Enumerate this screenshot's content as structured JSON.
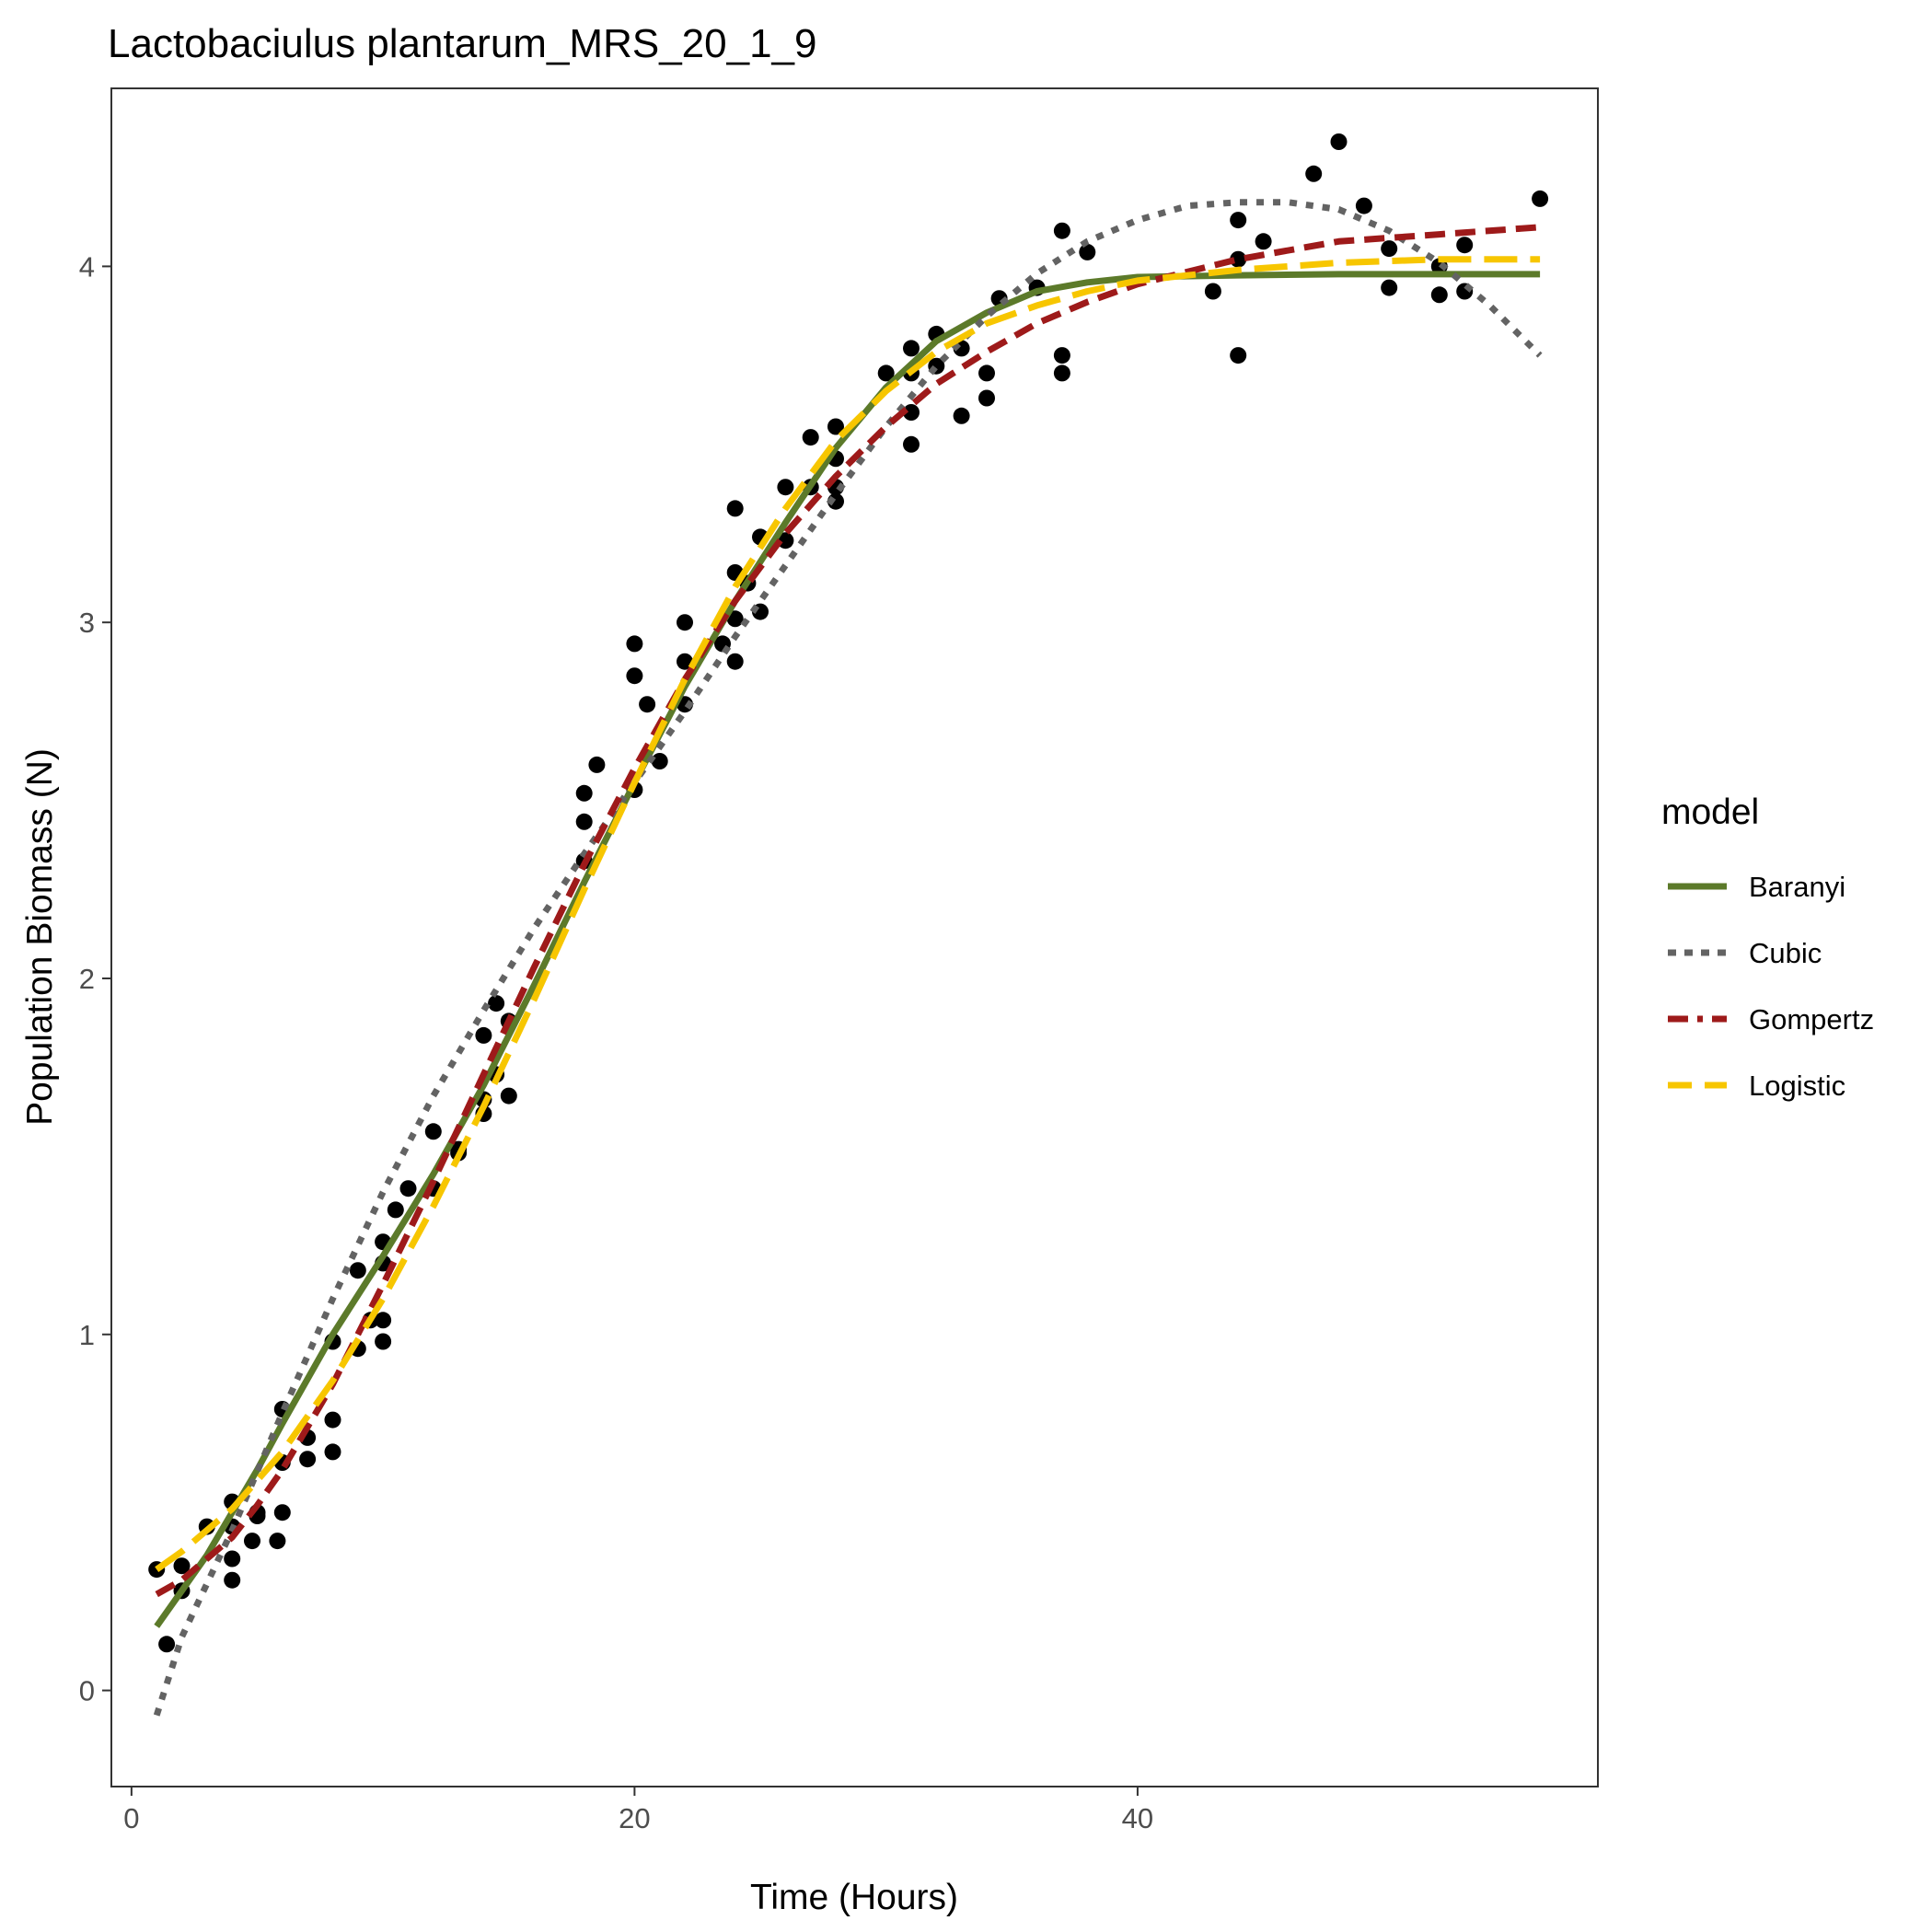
{
  "chart_data": {
    "type": "scatter",
    "title": "Lactobaciulus plantarum_MRS_20_1_9",
    "xlabel": "Time (Hours)",
    "ylabel": "Population Biomass (N)",
    "xlim": [
      -0.8,
      58.3
    ],
    "ylim": [
      -0.27,
      4.5
    ],
    "x_ticks": [
      0,
      20,
      40
    ],
    "y_ticks": [
      0,
      1,
      2,
      3,
      4
    ],
    "grid": false,
    "legend": {
      "title": "model",
      "position": "right"
    },
    "points": {
      "x": [
        1.0,
        1.4,
        2.0,
        2.0,
        3.0,
        4.0,
        4.0,
        4.0,
        4.0,
        4.8,
        5.0,
        5.0,
        5.8,
        6.0,
        6.0,
        6.0,
        7.0,
        7.0,
        8.0,
        8.0,
        8.0,
        9.0,
        9.0,
        9.5,
        10.0,
        10.0,
        10.0,
        10.0,
        10.5,
        11.0,
        12.0,
        12.0,
        13.0,
        13.0,
        14.0,
        14.0,
        14.0,
        14.5,
        14.5,
        15.0,
        15.0,
        18.0,
        18.0,
        18.0,
        18.5,
        20.0,
        20.0,
        20.0,
        20.5,
        21.0,
        22.0,
        22.0,
        22.0,
        23.5,
        24.0,
        24.0,
        24.0,
        24.0,
        24.5,
        25.0,
        25.0,
        26.0,
        26.0,
        27.0,
        27.0,
        28.0,
        28.0,
        28.0,
        28.0,
        30.0,
        31.0,
        31.0,
        31.0,
        31.0,
        32.0,
        32.0,
        33.0,
        33.0,
        34.0,
        34.0,
        34.5,
        36.0,
        37.0,
        37.0,
        37.0,
        38.0,
        43.0,
        44.0,
        44.0,
        44.0,
        45.0,
        47.0,
        48.0,
        49.0,
        50.0,
        50.0,
        52.0,
        52.0,
        53.0,
        53.0,
        56.0
      ],
      "y": [
        0.34,
        0.13,
        0.35,
        0.28,
        0.46,
        0.53,
        0.46,
        0.37,
        0.31,
        0.42,
        0.5,
        0.49,
        0.42,
        0.5,
        0.79,
        0.64,
        0.65,
        0.71,
        0.67,
        0.76,
        0.98,
        0.96,
        1.18,
        1.04,
        1.2,
        1.26,
        0.98,
        1.04,
        1.35,
        1.41,
        1.57,
        1.41,
        1.51,
        1.52,
        1.62,
        1.66,
        1.84,
        1.73,
        1.93,
        1.67,
        1.88,
        2.33,
        2.44,
        2.52,
        2.6,
        2.53,
        2.85,
        2.94,
        2.77,
        2.61,
        2.77,
        2.89,
        3.0,
        2.94,
        2.89,
        3.01,
        3.14,
        3.32,
        3.11,
        3.03,
        3.24,
        3.23,
        3.38,
        3.38,
        3.52,
        3.34,
        3.38,
        3.46,
        3.55,
        3.7,
        3.5,
        3.59,
        3.7,
        3.77,
        3.72,
        3.81,
        3.77,
        3.58,
        3.63,
        3.7,
        3.91,
        3.94,
        4.1,
        3.75,
        3.7,
        4.04,
        3.93,
        4.13,
        4.02,
        3.75,
        4.07,
        4.26,
        4.35,
        4.17,
        4.05,
        3.94,
        3.92,
        4.0,
        3.93,
        4.06,
        4.19
      ]
    },
    "series": [
      {
        "name": "Baranyi",
        "color": "#5c7a2a",
        "dash": "solid",
        "x": [
          1,
          2,
          3,
          4,
          5,
          6,
          8,
          10,
          12,
          14,
          16,
          18,
          20,
          22,
          24,
          26,
          28,
          30,
          32,
          34,
          36,
          38,
          40,
          44,
          48,
          52,
          56
        ],
        "y": [
          0.18,
          0.28,
          0.38,
          0.5,
          0.62,
          0.75,
          1.0,
          1.22,
          1.45,
          1.7,
          1.98,
          2.27,
          2.55,
          2.82,
          3.06,
          3.28,
          3.49,
          3.66,
          3.79,
          3.87,
          3.93,
          3.955,
          3.97,
          3.975,
          3.978,
          3.978,
          3.978
        ]
      },
      {
        "name": "Cubic",
        "color": "#636363",
        "dash": "dotted",
        "x": [
          1,
          2,
          4,
          6,
          8,
          10,
          12,
          14,
          16,
          18,
          20,
          22,
          24,
          26,
          28,
          30,
          32,
          34,
          36,
          38,
          40,
          42,
          44,
          46,
          48,
          50,
          52,
          54,
          56
        ],
        "y": [
          -0.07,
          0.15,
          0.45,
          0.78,
          1.1,
          1.4,
          1.67,
          1.91,
          2.14,
          2.35,
          2.55,
          2.75,
          2.96,
          3.16,
          3.36,
          3.55,
          3.72,
          3.86,
          3.98,
          4.07,
          4.13,
          4.17,
          4.18,
          4.18,
          4.16,
          4.1,
          4.01,
          3.89,
          3.75
        ]
      },
      {
        "name": "Gompertz",
        "color": "#9e1a1a",
        "dash": "dashed",
        "x": [
          1,
          2,
          3,
          4,
          5,
          6,
          8,
          10,
          12,
          14,
          16,
          18,
          20,
          22,
          24,
          26,
          28,
          30,
          32,
          34,
          36,
          38,
          40,
          44,
          48,
          52,
          56
        ],
        "y": [
          0.27,
          0.31,
          0.37,
          0.43,
          0.52,
          0.62,
          0.86,
          1.14,
          1.43,
          1.73,
          2.03,
          2.32,
          2.59,
          2.84,
          3.06,
          3.25,
          3.41,
          3.55,
          3.67,
          3.76,
          3.84,
          3.9,
          3.95,
          4.02,
          4.07,
          4.09,
          4.11
        ]
      },
      {
        "name": "Logistic",
        "color": "#f7c600",
        "dash": "longdash",
        "x": [
          1,
          2,
          3,
          4,
          5,
          6,
          8,
          10,
          12,
          14,
          16,
          18,
          20,
          22,
          24,
          26,
          28,
          30,
          32,
          34,
          36,
          38,
          40,
          44,
          48,
          52,
          56
        ],
        "y": [
          0.34,
          0.39,
          0.45,
          0.51,
          0.59,
          0.67,
          0.87,
          1.1,
          1.36,
          1.64,
          1.94,
          2.25,
          2.55,
          2.84,
          3.1,
          3.32,
          3.51,
          3.65,
          3.76,
          3.84,
          3.89,
          3.93,
          3.96,
          3.99,
          4.01,
          4.02,
          4.02
        ]
      }
    ]
  }
}
